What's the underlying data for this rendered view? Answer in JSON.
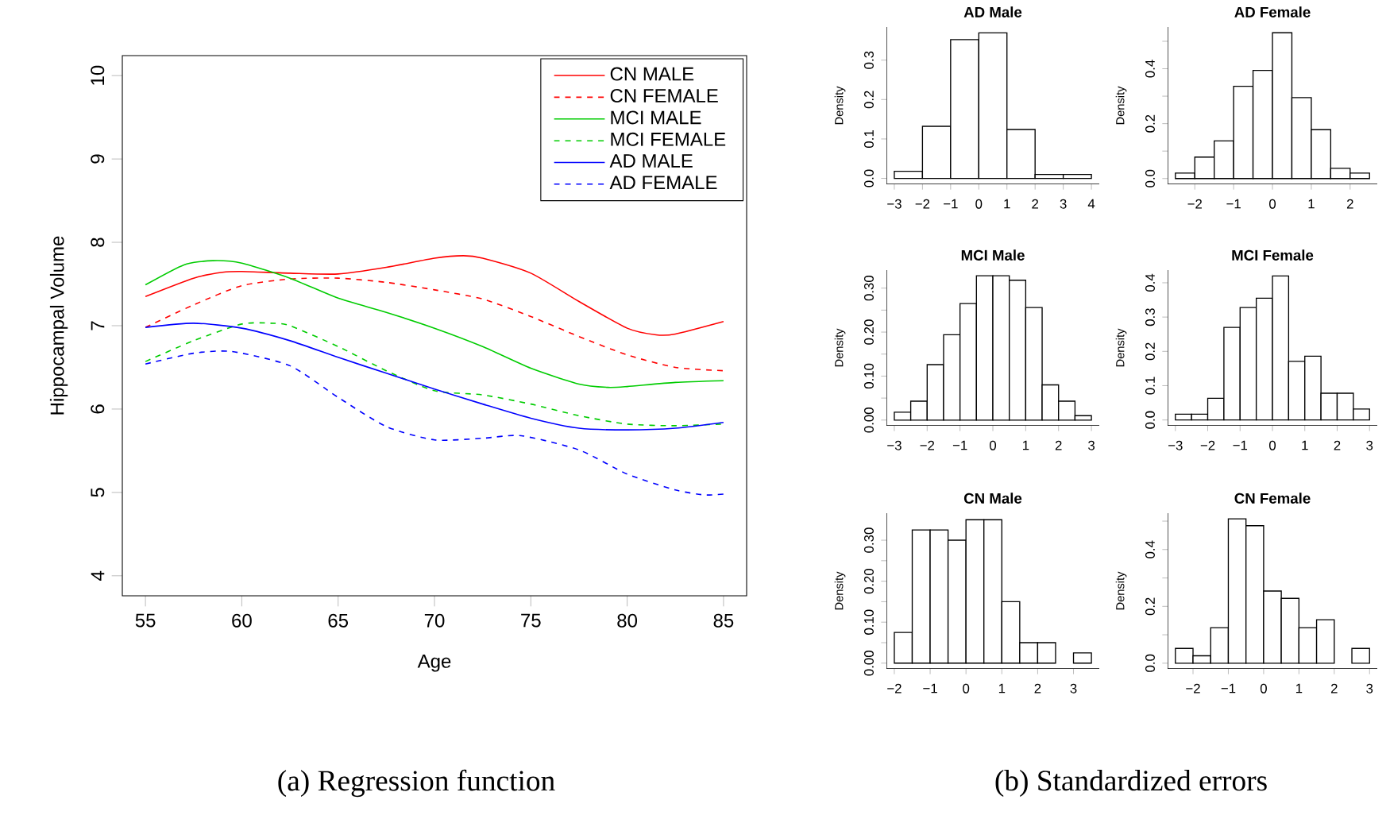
{
  "chart_data": [
    {
      "type": "line",
      "xlabel": "Age",
      "ylabel": "Hippocampal Volume",
      "xlim": [
        53.8,
        86.2
      ],
      "ylim": [
        3.76,
        10.24
      ],
      "xticks": [
        55,
        60,
        65,
        70,
        75,
        80,
        85
      ],
      "yticks": [
        4,
        5,
        6,
        7,
        8,
        9,
        10
      ],
      "legend": "top right",
      "marker": "none",
      "annotations": [
        "(a) Regression function"
      ],
      "series": [
        {
          "name": "CN MALE",
          "color": "#ff0000",
          "line_style": "solid",
          "x": [
            55,
            57.5,
            59,
            60,
            62.5,
            65,
            67.5,
            70,
            71.5,
            72.5,
            75,
            77.5,
            80,
            81.5,
            82.5,
            85
          ],
          "values": [
            7.35,
            7.57,
            7.64,
            7.65,
            7.63,
            7.62,
            7.7,
            7.81,
            7.84,
            7.81,
            7.63,
            7.29,
            6.97,
            6.89,
            6.9,
            7.05
          ]
        },
        {
          "name": "CN FEMALE",
          "color": "#ff0000",
          "line_style": "dashed",
          "x": [
            55,
            57.5,
            60,
            62.5,
            65,
            67.5,
            70,
            72.5,
            75,
            77.5,
            80,
            82.5,
            85
          ],
          "values": [
            6.98,
            7.25,
            7.48,
            7.56,
            7.57,
            7.52,
            7.43,
            7.32,
            7.11,
            6.87,
            6.65,
            6.5,
            6.46
          ]
        },
        {
          "name": "MCI MALE",
          "color": "#00cc00",
          "line_style": "solid",
          "x": [
            55,
            57,
            58.5,
            60,
            62.5,
            65,
            67.5,
            70,
            72.5,
            75,
            77.5,
            79,
            80,
            82.5,
            85
          ],
          "values": [
            7.49,
            7.73,
            7.78,
            7.75,
            7.57,
            7.33,
            7.16,
            6.97,
            6.75,
            6.49,
            6.3,
            6.26,
            6.27,
            6.32,
            6.34
          ]
        },
        {
          "name": "MCI FEMALE",
          "color": "#00cc00",
          "line_style": "dashed",
          "x": [
            55,
            57.5,
            60,
            61.5,
            62.5,
            65,
            67.5,
            70,
            72.5,
            75,
            77.5,
            80,
            82.5,
            85
          ],
          "values": [
            6.57,
            6.82,
            7.02,
            7.03,
            7.0,
            6.75,
            6.46,
            6.22,
            6.17,
            6.06,
            5.92,
            5.82,
            5.8,
            5.82
          ]
        },
        {
          "name": "AD MALE",
          "color": "#0000ff",
          "line_style": "solid",
          "x": [
            55,
            57.5,
            60,
            62.5,
            65,
            67.5,
            70,
            72.5,
            75,
            77.5,
            80,
            82.5,
            85
          ],
          "values": [
            6.98,
            7.03,
            6.97,
            6.82,
            6.62,
            6.43,
            6.24,
            6.06,
            5.89,
            5.77,
            5.75,
            5.77,
            5.84
          ]
        },
        {
          "name": "AD FEMALE",
          "color": "#0000ff",
          "line_style": "dashed",
          "x": [
            55,
            57.5,
            59.5,
            62.5,
            65,
            67.5,
            70,
            72.5,
            74.5,
            77.5,
            80,
            82.5,
            84,
            85
          ],
          "values": [
            6.54,
            6.67,
            6.69,
            6.52,
            6.14,
            5.79,
            5.63,
            5.65,
            5.68,
            5.51,
            5.22,
            5.03,
            4.97,
            4.98
          ]
        }
      ]
    },
    {
      "type": "histogram",
      "title": "AD Male",
      "ylabel": "Density",
      "color": "#ffffff",
      "annotations": [
        "(b) Standardized errors"
      ],
      "bins": [
        -3,
        -2,
        -1,
        0,
        1,
        2,
        3,
        4
      ],
      "values": [
        0.018,
        0.132,
        0.352,
        0.369,
        0.124,
        0.01,
        0.01
      ],
      "xlim": [
        -3.28,
        4.28
      ],
      "ylim": [
        -0.015,
        0.384
      ],
      "xticks": [
        {
          "value": -3,
          "label": "−3"
        },
        {
          "value": -2,
          "label": "−2"
        },
        {
          "value": -1,
          "label": "−1"
        },
        {
          "value": 0,
          "label": "0"
        },
        {
          "value": 1,
          "label": "1"
        },
        {
          "value": 2,
          "label": "2"
        },
        {
          "value": 3,
          "label": "3"
        },
        {
          "value": 4,
          "label": "4"
        }
      ],
      "yticks": [
        {
          "value": 0,
          "label": "0.0"
        },
        {
          "value": 0.1,
          "label": "0.1"
        },
        {
          "value": 0.2,
          "label": "0.2"
        },
        {
          "value": 0.3,
          "label": "0.3"
        }
      ]
    },
    {
      "type": "histogram",
      "title": "AD Female",
      "ylabel": "Density",
      "color": "#ffffff",
      "bins": [
        -2.5,
        -2,
        -1.5,
        -1,
        -0.5,
        0,
        0.5,
        1,
        1.5,
        2,
        2.5
      ],
      "values": [
        0.02,
        0.078,
        0.137,
        0.336,
        0.394,
        0.531,
        0.295,
        0.178,
        0.037,
        0.02
      ],
      "xlim": [
        -2.7,
        2.7
      ],
      "ylim": [
        -0.021,
        0.552
      ],
      "xticks": [
        {
          "value": -2,
          "label": "−2"
        },
        {
          "value": -1,
          "label": "−1"
        },
        {
          "value": 0,
          "label": "0"
        },
        {
          "value": 1,
          "label": "1"
        },
        {
          "value": 2,
          "label": "2"
        }
      ],
      "yticks": [
        {
          "value": 0,
          "label": "0.0"
        },
        {
          "value": 0.1,
          "label": null
        },
        {
          "value": 0.2,
          "label": "0.2"
        },
        {
          "value": 0.3,
          "label": null
        },
        {
          "value": 0.4,
          "label": "0.4"
        },
        {
          "value": 0.5,
          "label": null
        }
      ]
    },
    {
      "type": "histogram",
      "title": "MCI Male",
      "ylabel": "Density",
      "color": "#ffffff",
      "bins": [
        -3,
        -2.5,
        -2,
        -1.5,
        -1,
        -0.5,
        0,
        0.5,
        1,
        1.5,
        2,
        2.5,
        3
      ],
      "values": [
        0.018,
        0.043,
        0.126,
        0.194,
        0.265,
        0.328,
        0.328,
        0.318,
        0.256,
        0.08,
        0.043,
        0.01
      ],
      "xlim": [
        -3.24,
        3.24
      ],
      "ylim": [
        -0.013,
        0.341
      ],
      "xticks": [
        {
          "value": -3,
          "label": "−3"
        },
        {
          "value": -2,
          "label": "−2"
        },
        {
          "value": -1,
          "label": "−1"
        },
        {
          "value": 0,
          "label": "0"
        },
        {
          "value": 1,
          "label": "1"
        },
        {
          "value": 2,
          "label": "2"
        },
        {
          "value": 3,
          "label": "3"
        }
      ],
      "yticks": [
        {
          "value": 0,
          "label": "0.00"
        },
        {
          "value": 0.05,
          "label": null
        },
        {
          "value": 0.1,
          "label": "0.10"
        },
        {
          "value": 0.15,
          "label": null
        },
        {
          "value": 0.2,
          "label": "0.20"
        },
        {
          "value": 0.25,
          "label": null
        },
        {
          "value": 0.3,
          "label": "0.30"
        }
      ]
    },
    {
      "type": "histogram",
      "title": "MCI Female",
      "ylabel": "Density",
      "color": "#ffffff",
      "bins": [
        -3,
        -2.5,
        -2,
        -1.5,
        -1,
        -0.5,
        0,
        0.5,
        1,
        1.5,
        2,
        2.5,
        3
      ],
      "values": [
        0.017,
        0.017,
        0.063,
        0.27,
        0.328,
        0.355,
        0.42,
        0.171,
        0.186,
        0.078,
        0.078,
        0.032
      ],
      "xlim": [
        -3.24,
        3.24
      ],
      "ylim": [
        -0.017,
        0.437
      ],
      "xticks": [
        {
          "value": -3,
          "label": "−3"
        },
        {
          "value": -2,
          "label": "−2"
        },
        {
          "value": -1,
          "label": "−1"
        },
        {
          "value": 0,
          "label": "0"
        },
        {
          "value": 1,
          "label": "1"
        },
        {
          "value": 2,
          "label": "2"
        },
        {
          "value": 3,
          "label": "3"
        }
      ],
      "yticks": [
        {
          "value": 0,
          "label": "0.0"
        },
        {
          "value": 0.1,
          "label": "0.1"
        },
        {
          "value": 0.2,
          "label": "0.2"
        },
        {
          "value": 0.3,
          "label": "0.3"
        },
        {
          "value": 0.4,
          "label": "0.4"
        }
      ]
    },
    {
      "type": "histogram",
      "title": "CN Male",
      "ylabel": "Density",
      "color": "#ffffff",
      "bins": [
        -2,
        -1.5,
        -1,
        -0.5,
        0,
        0.5,
        1,
        1.5,
        2,
        2.5,
        3,
        3.5
      ],
      "values": [
        0.075,
        0.325,
        0.325,
        0.3,
        0.35,
        0.35,
        0.15,
        0.05,
        0.05,
        null,
        0.025
      ],
      "xlim": [
        -2.22,
        3.72
      ],
      "ylim": [
        -0.014,
        0.366
      ],
      "xticks": [
        {
          "value": -2,
          "label": "−2"
        },
        {
          "value": -1,
          "label": "−1"
        },
        {
          "value": 0,
          "label": "0"
        },
        {
          "value": 1,
          "label": "1"
        },
        {
          "value": 2,
          "label": "2"
        },
        {
          "value": 3,
          "label": "3"
        }
      ],
      "yticks": [
        {
          "value": 0,
          "label": "0.00"
        },
        {
          "value": 0.05,
          "label": null
        },
        {
          "value": 0.1,
          "label": "0.10"
        },
        {
          "value": 0.15,
          "label": null
        },
        {
          "value": 0.2,
          "label": "0.20"
        },
        {
          "value": 0.25,
          "label": null
        },
        {
          "value": 0.3,
          "label": "0.30"
        }
      ]
    },
    {
      "type": "histogram",
      "title": "CN Female",
      "ylabel": "Density",
      "color": "#ffffff",
      "bins": [
        -2.5,
        -2,
        -1.5,
        -1,
        -0.5,
        0,
        0.5,
        1,
        1.5,
        2,
        2.5,
        3
      ],
      "values": [
        0.052,
        0.026,
        0.125,
        0.508,
        0.484,
        0.254,
        0.228,
        0.125,
        0.153,
        null,
        0.052
      ],
      "xlim": [
        -2.72,
        3.22
      ],
      "ylim": [
        -0.02,
        0.528
      ],
      "xticks": [
        {
          "value": -2,
          "label": "−2"
        },
        {
          "value": -1,
          "label": "−1"
        },
        {
          "value": 0,
          "label": "0"
        },
        {
          "value": 1,
          "label": "1"
        },
        {
          "value": 2,
          "label": "2"
        },
        {
          "value": 3,
          "label": "3"
        }
      ],
      "yticks": [
        {
          "value": 0,
          "label": "0.0"
        },
        {
          "value": 0.1,
          "label": null
        },
        {
          "value": 0.2,
          "label": "0.2"
        },
        {
          "value": 0.3,
          "label": null
        },
        {
          "value": 0.4,
          "label": "0.4"
        },
        {
          "value": 0.5,
          "label": null
        }
      ]
    }
  ]
}
